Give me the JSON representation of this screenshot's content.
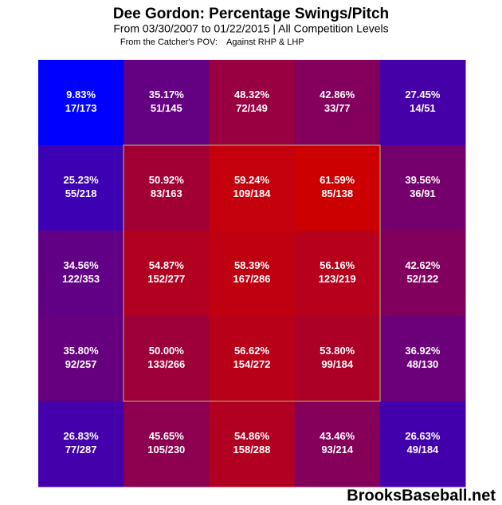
{
  "chart_data": {
    "type": "heatmap",
    "title": "Dee Gordon: Percentage Swings/Pitch",
    "subtitle": "From 03/30/2007 to 01/22/2015 | All Competition Levels",
    "note": [
      "From the Catcher's POV:",
      "Against RHP & LHP"
    ],
    "watermark": "BrooksBaseball.net",
    "color_low": "#0000ff",
    "color_high": "#cc0000",
    "values": [
      [
        9.83,
        35.17,
        48.32,
        42.86,
        27.45
      ],
      [
        25.23,
        50.92,
        59.24,
        61.59,
        39.56
      ],
      [
        34.56,
        54.87,
        58.39,
        56.16,
        42.62
      ],
      [
        35.8,
        50,
        56.62,
        53.8,
        36.92
      ],
      [
        26.83,
        45.65,
        54.86,
        43.46,
        26.63
      ]
    ],
    "value_labels": [
      [
        "9.83%",
        "35.17%",
        "48.32%",
        "42.86%",
        "27.45%"
      ],
      [
        "25.23%",
        "50.92%",
        "59.24%",
        "61.59%",
        "39.56%"
      ],
      [
        "34.56%",
        "54.87%",
        "58.39%",
        "56.16%",
        "42.62%"
      ],
      [
        "35.80%",
        "50.00%",
        "56.62%",
        "53.80%",
        "36.92%"
      ],
      [
        "26.83%",
        "45.65%",
        "54.86%",
        "43.46%",
        "26.63%"
      ]
    ],
    "counts": [
      [
        "17/173",
        "51/145",
        "72/149",
        "33/77",
        "14/51"
      ],
      [
        "55/218",
        "83/163",
        "109/184",
        "85/138",
        "36/91"
      ],
      [
        "122/353",
        "152/277",
        "167/286",
        "123/219",
        "52/122"
      ],
      [
        "92/257",
        "133/266",
        "154/272",
        "99/184",
        "48/130"
      ],
      [
        "77/287",
        "105/230",
        "158/288",
        "93/214",
        "49/184"
      ]
    ]
  }
}
